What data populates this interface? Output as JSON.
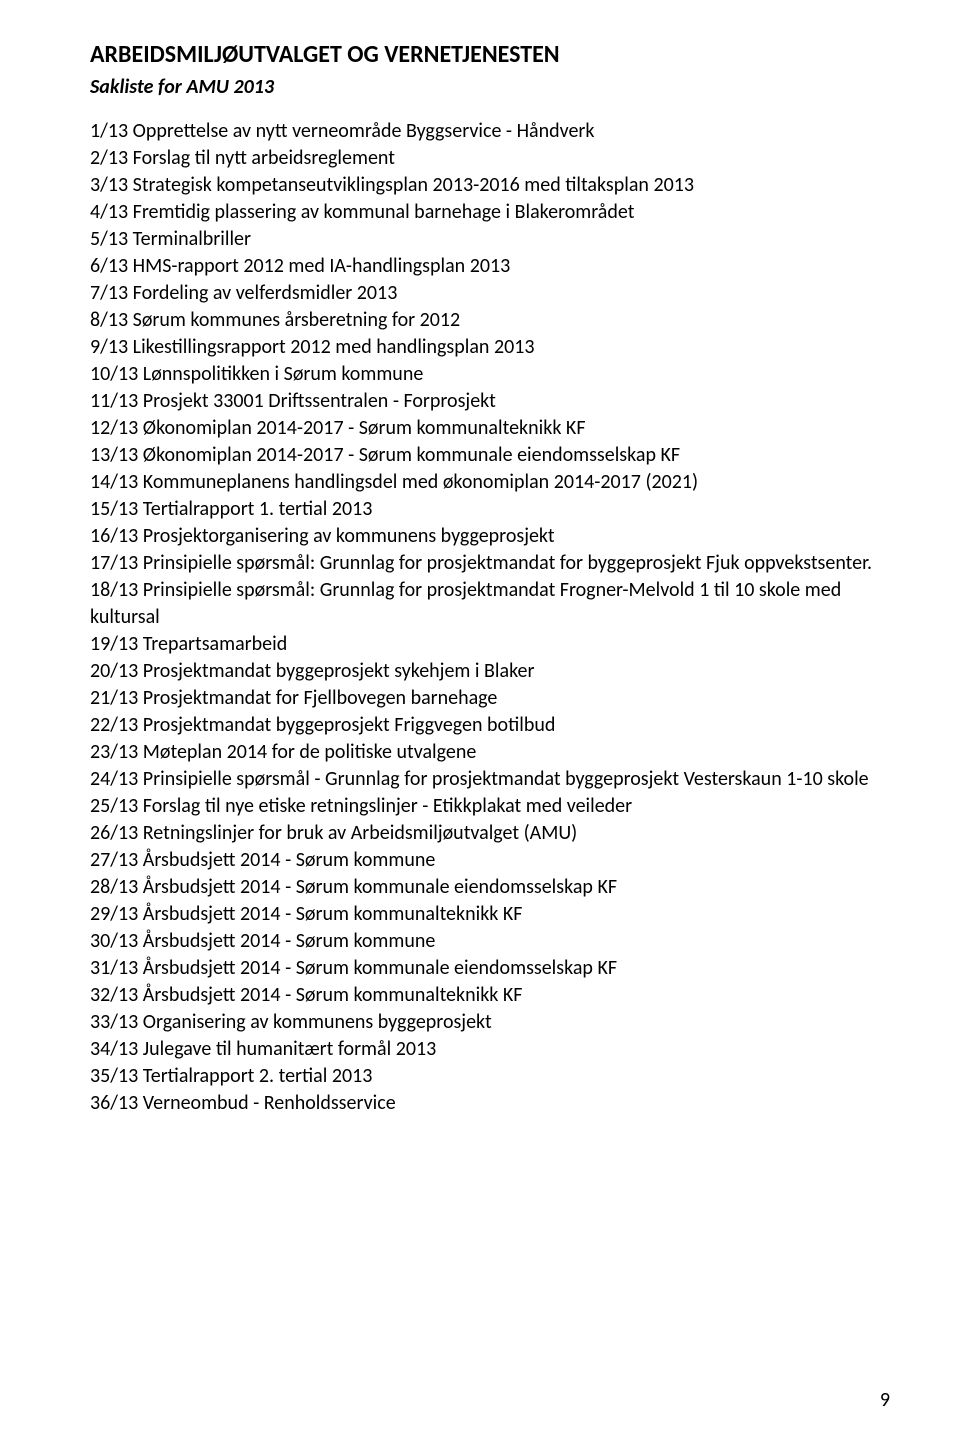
{
  "heading": "ARBEIDSMILJØUTVALGET OG VERNETJENESTEN",
  "subheading": "Sakliste for AMU 2013",
  "items": [
    "1/13 Opprettelse av nytt verneområde Byggservice - Håndverk",
    "2/13 Forslag til nytt arbeidsreglement",
    "3/13 Strategisk kompetanseutviklingsplan 2013-2016 med tiltaksplan 2013",
    "4/13 Fremtidig plassering av kommunal barnehage i Blakerområdet",
    "5/13 Terminalbriller",
    "6/13 HMS-rapport 2012 med IA-handlingsplan 2013",
    "7/13 Fordeling av velferdsmidler 2013",
    "8/13 Sørum kommunes årsberetning for 2012",
    "9/13 Likestillingsrapport 2012 med handlingsplan 2013",
    "10/13 Lønnspolitikken i Sørum kommune",
    "11/13 Prosjekt 33001 Driftssentralen - Forprosjekt",
    "12/13 Økonomiplan 2014-2017 - Sørum kommunalteknikk KF",
    "13/13 Økonomiplan 2014-2017 - Sørum kommunale eiendomsselskap KF",
    "14/13 Kommuneplanens handlingsdel med økonomiplan 2014-2017 (2021)",
    "15/13 Tertialrapport 1. tertial 2013",
    "16/13 Prosjektorganisering av kommunens byggeprosjekt",
    "17/13 Prinsipielle spørsmål: Grunnlag for prosjektmandat for byggeprosjekt Fjuk oppvekstsenter.",
    "18/13 Prinsipielle spørsmål: Grunnlag for prosjektmandat Frogner-Melvold 1 til 10 skole med kultursal",
    "19/13 Trepartsamarbeid",
    "20/13 Prosjektmandat byggeprosjekt sykehjem i Blaker",
    "21/13 Prosjektmandat for Fjellbovegen barnehage",
    "22/13 Prosjektmandat byggeprosjekt Friggvegen botilbud",
    "23/13 Møteplan 2014 for de politiske utvalgene",
    "24/13 Prinsipielle spørsmål - Grunnlag for prosjektmandat byggeprosjekt Vesterskaun 1-10 skole",
    "25/13 Forslag til nye etiske retningslinjer - Etikkplakat med veileder",
    "26/13 Retningslinjer for bruk av Arbeidsmiljøutvalget (AMU)",
    "27/13 Årsbudsjett 2014 - Sørum kommune",
    "28/13 Årsbudsjett 2014 - Sørum kommunale eiendomsselskap KF",
    "29/13 Årsbudsjett 2014 - Sørum kommunalteknikk KF",
    "30/13 Årsbudsjett 2014 - Sørum kommune",
    "31/13 Årsbudsjett 2014 - Sørum kommunale eiendomsselskap KF",
    "32/13 Årsbudsjett 2014 - Sørum kommunalteknikk KF",
    "33/13 Organisering av kommunens byggeprosjekt",
    "34/13 Julegave til humanitært formål 2013",
    "35/13 Tertialrapport 2. tertial 2013",
    "36/13 Verneombud - Renholdsservice"
  ],
  "page_number": "9",
  "colors": {
    "text": "#000000",
    "background": "#ffffff"
  },
  "typography": {
    "heading_fontsize": 24,
    "subheading_fontsize": 20,
    "body_fontsize": 20,
    "font_family": "Calibri"
  }
}
